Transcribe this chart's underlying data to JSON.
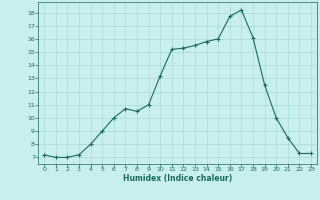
{
  "x": [
    0,
    1,
    2,
    3,
    4,
    5,
    6,
    7,
    8,
    9,
    10,
    11,
    12,
    13,
    14,
    15,
    16,
    17,
    18,
    19,
    20,
    21,
    22,
    23
  ],
  "y": [
    7.2,
    7.0,
    7.0,
    7.2,
    8.0,
    9.0,
    10.0,
    10.7,
    10.5,
    11.0,
    13.2,
    15.2,
    15.3,
    15.5,
    15.8,
    16.0,
    17.7,
    18.2,
    16.1,
    12.5,
    10.0,
    8.5,
    7.3,
    7.3
  ],
  "xlabel": "Humidex (Indice chaleur)",
  "xlim": [
    -0.5,
    23.5
  ],
  "ylim": [
    6.5,
    18.8
  ],
  "yticks": [
    7,
    8,
    9,
    10,
    11,
    12,
    13,
    14,
    15,
    16,
    17,
    18
  ],
  "xticks": [
    0,
    1,
    2,
    3,
    4,
    5,
    6,
    7,
    8,
    9,
    10,
    11,
    12,
    13,
    14,
    15,
    16,
    17,
    18,
    19,
    20,
    21,
    22,
    23
  ],
  "line_color": "#1a6b5e",
  "bg_color": "#c8eeee",
  "grid_color": "#a8d8d8",
  "label_color": "#1a6b5e",
  "tick_color": "#1a6b5e"
}
